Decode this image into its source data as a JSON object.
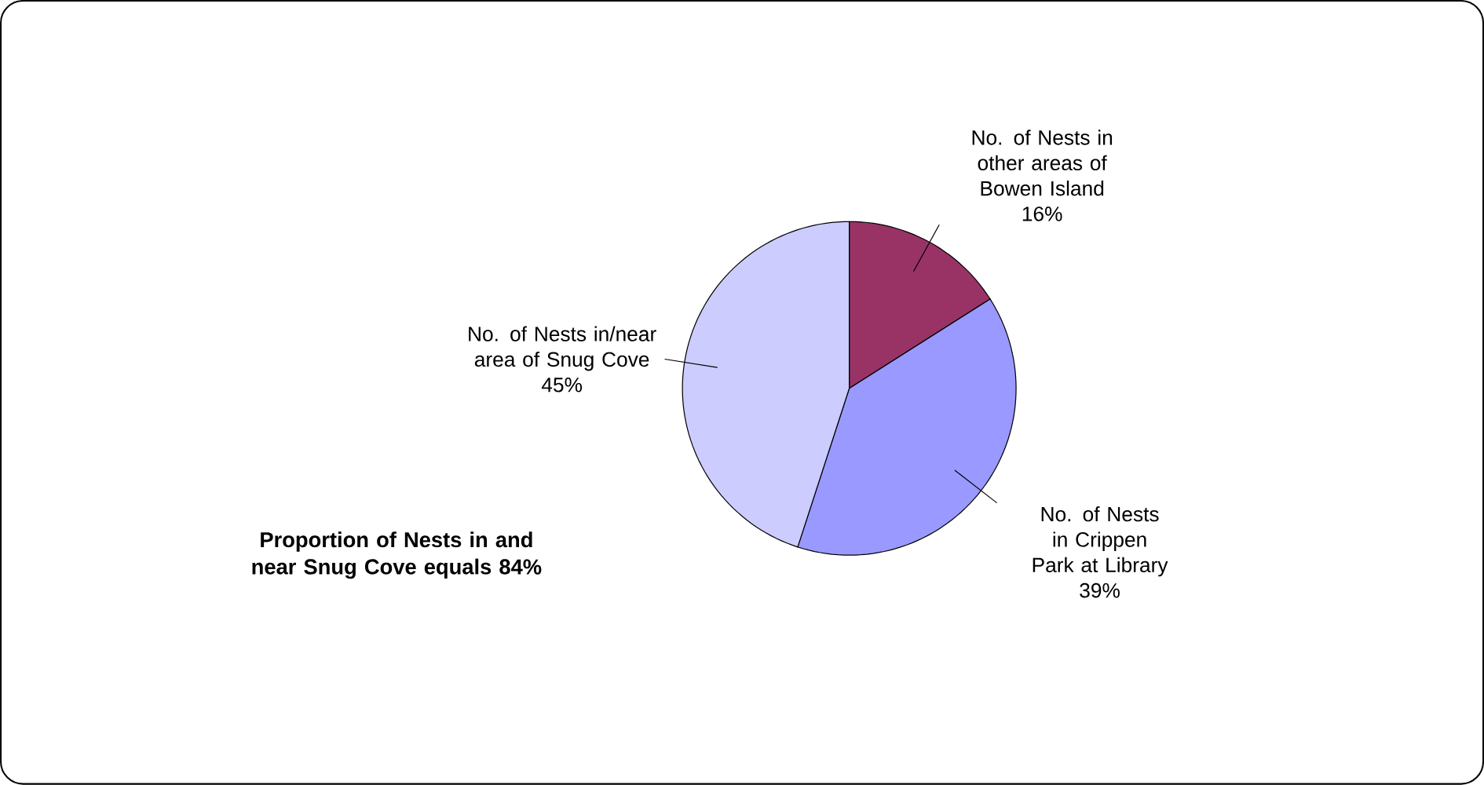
{
  "chart_data": {
    "type": "pie",
    "categories": [
      "No. of Nests in other areas of Bowen Island",
      "No. of Nests in Crippen Park at Library",
      "No. of Nests in/near area of Snug Cove"
    ],
    "values": [
      16,
      39,
      45
    ],
    "value_labels": [
      "16%",
      "39%",
      "45%"
    ],
    "colors": [
      "#993366",
      "#9999ff",
      "#ccccff"
    ],
    "annotations": [
      "Proportion of Nests in and near Snug Cove equals 84%"
    ]
  }
}
